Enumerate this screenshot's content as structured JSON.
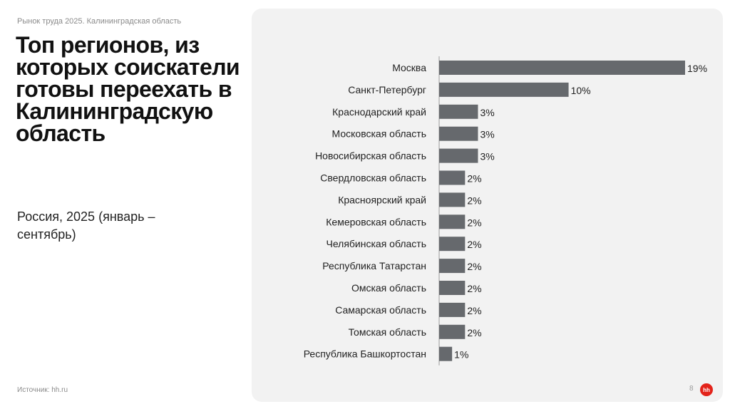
{
  "header": {
    "breadcrumb": "Рынок труда 2025. Калининградская область",
    "title": "Топ регионов, из которых соискатели готовы переехать в Калининградскую область",
    "subtitle": "Россия, 2025 (январь – сентябрь)"
  },
  "footer": {
    "source": "Источник: hh.ru",
    "page_number": "8",
    "logo_text": "hh"
  },
  "colors": {
    "bar": "#66696d",
    "logo": "#e3231a",
    "panel": "#f2f2f2"
  },
  "chart_data": {
    "type": "bar",
    "orientation": "horizontal",
    "categories": [
      "Москва",
      "Санкт-Петербург",
      "Краснодарский край",
      "Московская область",
      "Новосибирская область",
      "Свердловская область",
      "Красноярский край",
      "Кемеровская область",
      "Челябинская область",
      "Республика Татарстан",
      "Омская область",
      "Самарская область",
      "Томская область",
      "Республика Башкортостан"
    ],
    "values": [
      19,
      10,
      3,
      3,
      3,
      2,
      2,
      2,
      2,
      2,
      2,
      2,
      2,
      1
    ],
    "value_labels": [
      "19%",
      "10%",
      "3%",
      "3%",
      "3%",
      "2%",
      "2%",
      "2%",
      "2%",
      "2%",
      "2%",
      "2%",
      "2%",
      "1%"
    ],
    "xlim": [
      0,
      19
    ],
    "grid": false,
    "legend": "none"
  }
}
